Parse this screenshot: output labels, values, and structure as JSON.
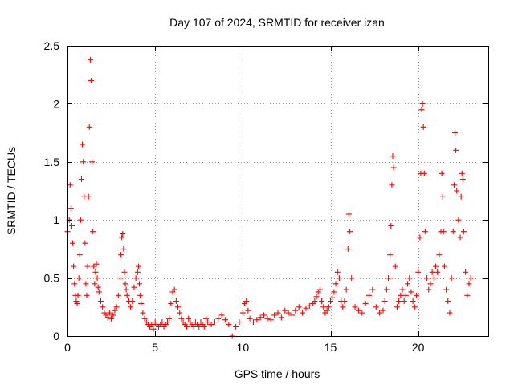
{
  "chart_data": {
    "type": "scatter",
    "title": "Day 107 of 2024, SRMTID for receiver izan",
    "xlabel": "GPS time / hours",
    "ylabel": "SRMTID / TECUs",
    "xlim": [
      0,
      24
    ],
    "ylim": [
      0,
      2.5
    ],
    "xticks": [
      0,
      5,
      10,
      15,
      20
    ],
    "yticks": [
      0,
      0.5,
      1,
      1.5,
      2,
      2.5
    ],
    "xtick_labels": [
      "0",
      "5",
      "10",
      "15",
      "20"
    ],
    "ytick_labels": [
      "0",
      "0.5",
      "1",
      "1.5",
      "2",
      "2.5"
    ],
    "grid": true,
    "marker": "+",
    "series": [
      {
        "name": "SRMTID",
        "color": "#ff0000",
        "x": [
          0.0,
          0.1,
          0.15,
          0.2,
          0.25,
          0.3,
          0.35,
          0.4,
          0.45,
          0.5,
          0.55,
          0.6,
          0.65,
          0.7,
          0.75,
          0.8,
          0.85,
          0.9,
          0.95,
          1.0,
          1.05,
          1.1,
          1.15,
          1.2,
          1.25,
          1.3,
          1.35,
          1.4,
          1.45,
          1.5,
          1.55,
          1.6,
          1.65,
          1.7,
          1.75,
          1.8,
          1.9,
          2.0,
          2.1,
          2.2,
          2.3,
          2.4,
          2.5,
          2.6,
          2.7,
          2.8,
          2.9,
          3.0,
          3.05,
          3.1,
          3.15,
          3.2,
          3.25,
          3.3,
          3.35,
          3.4,
          3.5,
          3.6,
          3.7,
          3.8,
          3.9,
          4.0,
          4.05,
          4.1,
          4.15,
          4.2,
          4.3,
          4.4,
          4.5,
          4.6,
          4.7,
          4.8,
          4.9,
          5.0,
          5.1,
          5.2,
          5.3,
          5.4,
          5.5,
          5.6,
          5.7,
          5.8,
          5.9,
          6.0,
          6.1,
          6.2,
          6.3,
          6.4,
          6.5,
          6.6,
          6.7,
          6.8,
          6.9,
          7.0,
          7.1,
          7.2,
          7.3,
          7.4,
          7.5,
          7.6,
          7.7,
          7.8,
          7.9,
          8.0,
          8.2,
          8.4,
          8.6,
          8.8,
          9.0,
          9.2,
          9.4,
          9.6,
          9.8,
          10.0,
          10.1,
          10.2,
          10.3,
          10.4,
          10.6,
          10.8,
          11.0,
          11.2,
          11.4,
          11.6,
          11.8,
          12.0,
          12.2,
          12.4,
          12.6,
          12.8,
          13.0,
          13.2,
          13.4,
          13.6,
          13.8,
          14.0,
          14.1,
          14.2,
          14.3,
          14.4,
          14.5,
          14.6,
          14.7,
          14.8,
          14.9,
          15.0,
          15.1,
          15.2,
          15.3,
          15.4,
          15.5,
          15.6,
          15.7,
          15.8,
          15.9,
          16.0,
          16.05,
          16.1,
          16.2,
          16.4,
          16.6,
          16.8,
          17.0,
          17.2,
          17.4,
          17.6,
          17.8,
          18.0,
          18.1,
          18.2,
          18.3,
          18.4,
          18.45,
          18.5,
          18.55,
          18.6,
          18.7,
          18.8,
          18.9,
          19.0,
          19.1,
          19.2,
          19.3,
          19.4,
          19.5,
          19.6,
          19.7,
          19.8,
          19.9,
          20.0,
          20.1,
          20.15,
          20.2,
          20.25,
          20.3,
          20.35,
          20.4,
          20.5,
          20.6,
          20.7,
          20.8,
          20.9,
          21.0,
          21.1,
          21.2,
          21.3,
          21.35,
          21.4,
          21.45,
          21.5,
          21.6,
          21.7,
          21.8,
          21.9,
          22.0,
          22.05,
          22.1,
          22.15,
          22.2,
          22.3,
          22.4,
          22.45,
          22.5,
          22.55,
          22.6,
          22.7,
          22.8,
          22.9,
          23.0
        ],
        "y": [
          0.9,
          1.0,
          1.3,
          1.1,
          0.95,
          0.8,
          0.6,
          0.45,
          0.35,
          0.3,
          0.28,
          0.35,
          0.5,
          0.7,
          1.0,
          1.35,
          1.65,
          1.5,
          1.2,
          0.8,
          0.45,
          0.35,
          0.6,
          1.2,
          1.8,
          2.38,
          2.2,
          1.5,
          0.9,
          0.6,
          0.45,
          0.55,
          0.62,
          0.5,
          0.42,
          0.38,
          0.3,
          0.25,
          0.2,
          0.18,
          0.16,
          0.2,
          0.15,
          0.18,
          0.22,
          0.25,
          0.35,
          0.5,
          0.7,
          0.85,
          0.88,
          0.75,
          0.55,
          0.45,
          0.4,
          0.35,
          0.3,
          0.25,
          0.3,
          0.42,
          0.5,
          0.55,
          0.6,
          0.45,
          0.35,
          0.28,
          0.2,
          0.15,
          0.12,
          0.1,
          0.08,
          0.1,
          0.06,
          0.12,
          0.1,
          0.08,
          0.1,
          0.12,
          0.08,
          0.1,
          0.12,
          0.15,
          0.28,
          0.38,
          0.4,
          0.3,
          0.25,
          0.2,
          0.15,
          0.12,
          0.1,
          0.08,
          0.15,
          0.12,
          0.1,
          0.08,
          0.12,
          0.1,
          0.08,
          0.12,
          0.1,
          0.08,
          0.15,
          0.12,
          0.1,
          0.12,
          0.15,
          0.18,
          0.14,
          0.1,
          0.0,
          0.08,
          0.12,
          0.2,
          0.28,
          0.3,
          0.22,
          0.15,
          0.12,
          0.14,
          0.16,
          0.18,
          0.15,
          0.14,
          0.18,
          0.2,
          0.16,
          0.22,
          0.2,
          0.18,
          0.22,
          0.25,
          0.2,
          0.24,
          0.26,
          0.28,
          0.3,
          0.34,
          0.38,
          0.4,
          0.3,
          0.25,
          0.2,
          0.22,
          0.25,
          0.3,
          0.33,
          0.38,
          0.45,
          0.55,
          0.5,
          0.3,
          0.25,
          0.3,
          0.4,
          0.75,
          1.05,
          0.9,
          0.5,
          0.25,
          0.22,
          0.2,
          0.28,
          0.35,
          0.4,
          0.25,
          0.2,
          0.22,
          0.3,
          0.4,
          0.5,
          0.7,
          0.95,
          1.3,
          1.55,
          1.45,
          0.6,
          0.25,
          0.3,
          0.35,
          0.4,
          0.3,
          0.35,
          0.45,
          0.5,
          0.38,
          0.3,
          0.25,
          0.35,
          0.55,
          0.85,
          1.4,
          1.95,
          2.0,
          1.8,
          1.4,
          0.9,
          0.5,
          0.4,
          0.45,
          0.55,
          0.5,
          0.6,
          0.55,
          0.7,
          0.9,
          1.4,
          1.2,
          0.9,
          0.6,
          0.4,
          0.3,
          0.2,
          0.5,
          0.9,
          1.3,
          1.75,
          1.6,
          1.25,
          1.0,
          0.85,
          1.2,
          1.4,
          1.35,
          0.9,
          0.55,
          0.35,
          0.45,
          0.5
        ]
      }
    ]
  }
}
